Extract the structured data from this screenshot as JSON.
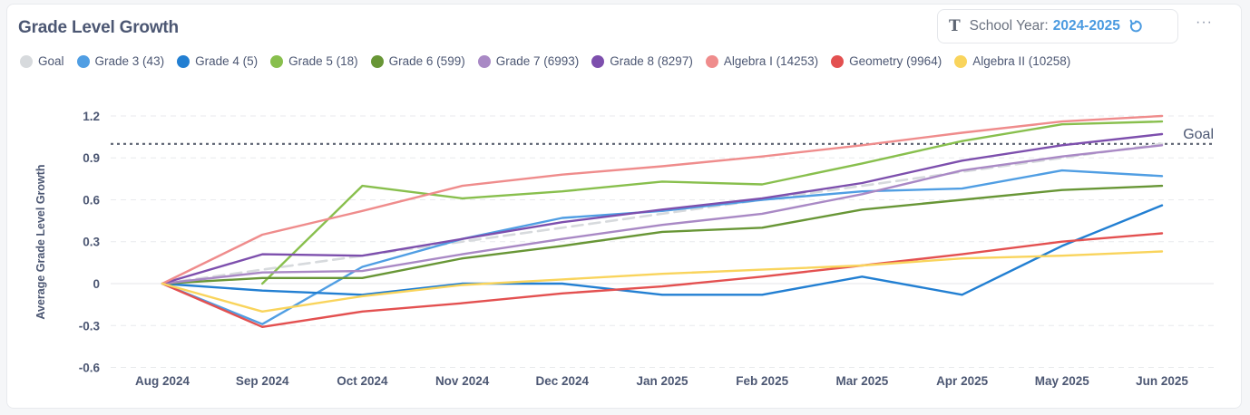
{
  "header": {
    "title": "Grade Level Growth",
    "filter_label": "School Year:",
    "filter_value": "2024-2025",
    "filter_icon": "text-type-icon",
    "reset_icon": "reset-icon",
    "more_label": "···"
  },
  "goal_label": "Goal",
  "chart_data": {
    "type": "line",
    "title": "Grade Level Growth",
    "xlabel": "",
    "ylabel": "Average Grade Level Growth",
    "ylim": [
      -0.6,
      1.2
    ],
    "yticks": [
      "1.2",
      "0.9",
      "0.6",
      "0.3",
      "0",
      "-0.3",
      "-0.6"
    ],
    "ytick_values": [
      1.2,
      0.9,
      0.6,
      0.3,
      0,
      -0.3,
      -0.6
    ],
    "grid": true,
    "legend_position": "top-left",
    "categories": [
      "Aug 2024",
      "Sep 2024",
      "Oct 2024",
      "Nov 2024",
      "Dec 2024",
      "Jan 2025",
      "Feb 2025",
      "Mar 2025",
      "Apr 2025",
      "May 2025",
      "Jun 2025"
    ],
    "goal_reference": 1.0,
    "series": [
      {
        "name": "Goal",
        "color": "#d7dadd",
        "dashed": true,
        "values": [
          0,
          0.1,
          0.2,
          0.3,
          0.4,
          0.5,
          0.6,
          0.7,
          0.8,
          0.9,
          1.0
        ]
      },
      {
        "name": "Grade 3 (43)",
        "color": "#509ee3",
        "values": [
          0,
          -0.29,
          0.12,
          0.32,
          0.47,
          0.52,
          0.6,
          0.66,
          0.68,
          0.81,
          0.77
        ]
      },
      {
        "name": "Grade 4 (5)",
        "color": "#227fd2",
        "values": [
          0,
          -0.05,
          -0.08,
          0.0,
          0.0,
          -0.08,
          -0.08,
          0.05,
          -0.08,
          0.27,
          0.56
        ]
      },
      {
        "name": "Grade 5 (18)",
        "color": "#88bf4d",
        "values": [
          null,
          0,
          0.7,
          0.61,
          0.66,
          0.73,
          0.71,
          0.86,
          1.02,
          1.14,
          1.16
        ]
      },
      {
        "name": "Grade 6 (599)",
        "color": "#689636",
        "values": [
          0,
          0.04,
          0.04,
          0.18,
          0.27,
          0.37,
          0.4,
          0.53,
          0.6,
          0.67,
          0.7
        ]
      },
      {
        "name": "Grade 7 (6993)",
        "color": "#a989c5",
        "values": [
          0,
          0.08,
          0.09,
          0.21,
          0.32,
          0.42,
          0.5,
          0.64,
          0.81,
          0.91,
          0.99
        ]
      },
      {
        "name": "Grade 8 (8297)",
        "color": "#7d4fad",
        "values": [
          0,
          0.21,
          0.2,
          0.32,
          0.44,
          0.53,
          0.61,
          0.72,
          0.88,
          0.99,
          1.07
        ]
      },
      {
        "name": "Algebra I (14253)",
        "color": "#ef8c8c",
        "values": [
          0,
          0.35,
          0.52,
          0.7,
          0.78,
          0.84,
          0.91,
          0.99,
          1.08,
          1.16,
          1.2
        ]
      },
      {
        "name": "Geometry (9964)",
        "color": "#e35050",
        "values": [
          0,
          -0.31,
          -0.2,
          -0.14,
          -0.07,
          -0.02,
          0.05,
          0.13,
          0.21,
          0.3,
          0.36
        ]
      },
      {
        "name": "Algebra II (10258)",
        "color": "#f9d45c",
        "values": [
          0,
          -0.2,
          -0.09,
          -0.01,
          0.03,
          0.07,
          0.1,
          0.13,
          0.18,
          0.2,
          0.23
        ]
      }
    ]
  }
}
